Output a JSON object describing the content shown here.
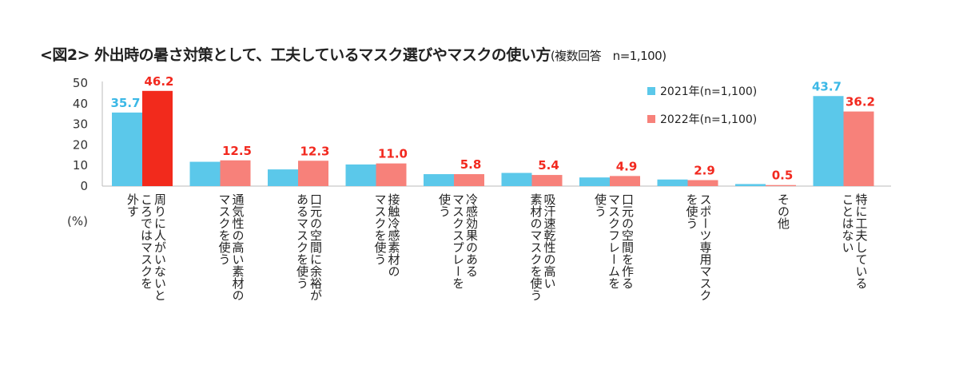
{
  "title": {
    "main": "<図2> 外出時の暑さ対策として、工夫しているマスク選びやマスクの使い方",
    "sub": "(複数回答　n=1,100)"
  },
  "chart_data": {
    "type": "bar",
    "title": "<図2> 外出時の暑さ対策として、工夫しているマスク選びやマスクの使い方(複数回答　n=1,100)",
    "ylabel": "(%)",
    "ylim": [
      0,
      50
    ],
    "yticks": [
      0,
      10,
      20,
      30,
      40,
      50
    ],
    "legend_position": "top-right",
    "categories": [
      [
        "外す",
        "周りに人がいないと",
        "ころではマスクを"
      ],
      [
        "通気性の高い素材の",
        "マスクを使う"
      ],
      [
        "口元の空間に余裕が",
        "あるマスクを使う"
      ],
      [
        "接触冷感素材の",
        "マスクを使う"
      ],
      [
        "冷感効果のある",
        "マスクスプレーを",
        "使う"
      ],
      [
        "吸汗速乾性の高い",
        "素材のマスクを使う"
      ],
      [
        "口元の空間を作る",
        "マスクフレームを",
        "使う"
      ],
      [
        "スポーツ専用マスク",
        "を使う"
      ],
      [
        "その他"
      ],
      [
        "特に工夫している",
        "ことはない"
      ]
    ],
    "series": [
      {
        "name": "2021年(n=1,100)",
        "color": "#5bc8ea",
        "label_color": "#3bb8e6",
        "values": [
          35.7,
          11.8,
          8.1,
          10.5,
          5.8,
          6.4,
          4.2,
          3.2,
          1.0,
          43.7
        ],
        "labeled": [
          true,
          false,
          false,
          false,
          false,
          false,
          false,
          false,
          false,
          true
        ]
      },
      {
        "name": "2022年(n=1,100)",
        "color": "#f7817a",
        "label_color": "#f2291f",
        "values": [
          46.2,
          12.5,
          12.3,
          11.0,
          5.8,
          5.4,
          4.9,
          2.9,
          0.5,
          36.2
        ],
        "labeled": [
          true,
          true,
          true,
          true,
          true,
          true,
          true,
          true,
          true,
          true
        ]
      }
    ],
    "highlight": {
      "category_index": 0,
      "series_index": 1,
      "color": "#f22a1c"
    }
  }
}
